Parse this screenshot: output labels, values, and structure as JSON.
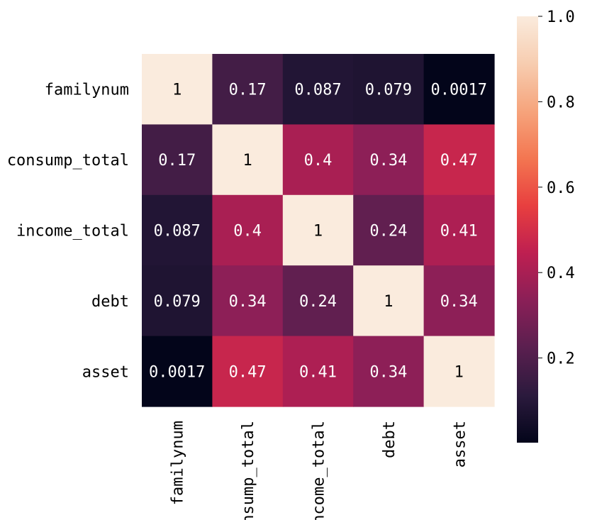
{
  "chart_data": {
    "type": "heatmap",
    "title": "",
    "xlabel": "",
    "ylabel": "",
    "x_labels": [
      "familynum",
      "consump_total",
      "income_total",
      "debt",
      "asset"
    ],
    "y_labels": [
      "familynum",
      "consump_total",
      "income_total",
      "debt",
      "asset"
    ],
    "values": [
      [
        1,
        0.17,
        0.087,
        0.079,
        0.0017
      ],
      [
        0.17,
        1,
        0.4,
        0.34,
        0.47
      ],
      [
        0.087,
        0.4,
        1,
        0.24,
        0.41
      ],
      [
        0.079,
        0.34,
        0.24,
        1,
        0.34
      ],
      [
        0.0017,
        0.47,
        0.41,
        0.34,
        1
      ]
    ],
    "annotations": [
      [
        "1",
        "0.17",
        "0.087",
        "0.079",
        "0.0017"
      ],
      [
        "0.17",
        "1",
        "0.4",
        "0.34",
        "0.47"
      ],
      [
        "0.087",
        "0.4",
        "1",
        "0.24",
        "0.41"
      ],
      [
        "0.079",
        "0.34",
        "0.24",
        "1",
        "0.34"
      ],
      [
        "0.0017",
        "0.47",
        "0.41",
        "0.34",
        "1"
      ]
    ],
    "colorbar": {
      "range": [
        0.0017,
        1.0
      ],
      "ticks": [
        0.2,
        0.4,
        0.6,
        0.8,
        1.0
      ],
      "tick_labels": [
        "0.2",
        "0.4",
        "0.6",
        "0.8",
        "1.0"
      ],
      "colormap": "rocket",
      "colormap_stops": [
        "#03051a",
        "#2b1a3d",
        "#5a1f4f",
        "#8a1f57",
        "#be1f51",
        "#e83f3f",
        "#f37651",
        "#f6a47c",
        "#f7cdb0",
        "#faebdd"
      ]
    }
  }
}
